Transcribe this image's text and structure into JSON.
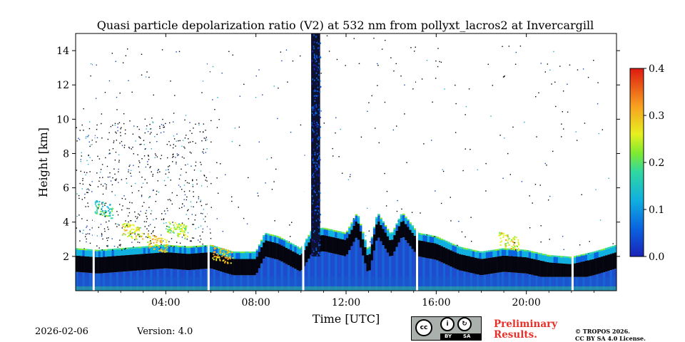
{
  "chart_data": {
    "type": "heatmap",
    "title": "Quasi particle depolarization ratio (V2) at 532 nm from pollyxt_lacros2 at Invercargill",
    "xlabel": "Time [UTC]",
    "ylabel": "Height [km]",
    "xlim_hours": [
      0,
      24
    ],
    "ylim_km": [
      0,
      15
    ],
    "x_ticks": [
      {
        "hour": 4,
        "label": "04:00"
      },
      {
        "hour": 8,
        "label": "08:00"
      },
      {
        "hour": 12,
        "label": "12:00"
      },
      {
        "hour": 16,
        "label": "16:00"
      },
      {
        "hour": 20,
        "label": "20:00"
      }
    ],
    "y_ticks": [
      {
        "km": 2,
        "label": "2"
      },
      {
        "km": 4,
        "label": "4"
      },
      {
        "km": 6,
        "label": "6"
      },
      {
        "km": 8,
        "label": "8"
      },
      {
        "km": 10,
        "label": "10"
      },
      {
        "km": 12,
        "label": "12"
      },
      {
        "km": 14,
        "label": "14"
      }
    ],
    "colorbar": {
      "range": [
        0.0,
        0.4
      ],
      "ticks": [
        {
          "value": 0.0,
          "label": "0.0"
        },
        {
          "value": 0.1,
          "label": "0.1"
        },
        {
          "value": 0.2,
          "label": "0.2"
        },
        {
          "value": 0.3,
          "label": "0.3"
        },
        {
          "value": 0.4,
          "label": "0.4"
        }
      ],
      "colors": [
        "#2030c8",
        "#0a78e0",
        "#12c0d8",
        "#40e070",
        "#e8f020",
        "#f8a020",
        "#e02010"
      ]
    },
    "cloud_top_km": [
      {
        "hour": 0.0,
        "km": 2.4
      },
      {
        "hour": 1.0,
        "km": 2.3
      },
      {
        "hour": 2.0,
        "km": 2.4
      },
      {
        "hour": 3.0,
        "km": 2.5
      },
      {
        "hour": 4.0,
        "km": 2.6
      },
      {
        "hour": 5.0,
        "km": 2.5
      },
      {
        "hour": 6.0,
        "km": 2.6
      },
      {
        "hour": 7.0,
        "km": 2.2
      },
      {
        "hour": 8.0,
        "km": 2.2
      },
      {
        "hour": 8.4,
        "km": 3.3
      },
      {
        "hour": 9.0,
        "km": 3.1
      },
      {
        "hour": 10.0,
        "km": 2.4
      },
      {
        "hour": 10.5,
        "km": 3.5
      },
      {
        "hour": 11.0,
        "km": 3.6
      },
      {
        "hour": 12.0,
        "km": 3.3
      },
      {
        "hour": 12.5,
        "km": 4.5
      },
      {
        "hour": 13.0,
        "km": 2.2
      },
      {
        "hour": 13.4,
        "km": 4.5
      },
      {
        "hour": 14.0,
        "km": 3.2
      },
      {
        "hour": 14.5,
        "km": 4.5
      },
      {
        "hour": 15.2,
        "km": 3.3
      },
      {
        "hour": 16.0,
        "km": 3.1
      },
      {
        "hour": 17.0,
        "km": 2.5
      },
      {
        "hour": 18.0,
        "km": 2.2
      },
      {
        "hour": 19.0,
        "km": 2.4
      },
      {
        "hour": 20.0,
        "km": 2.3
      },
      {
        "hour": 21.0,
        "km": 2.0
      },
      {
        "hour": 22.0,
        "km": 1.9
      },
      {
        "hour": 23.0,
        "km": 2.2
      },
      {
        "hour": 24.0,
        "km": 2.6
      }
    ],
    "plume": {
      "hour_start": 10.45,
      "hour_end": 10.85,
      "top_km": 15
    },
    "high_depol_patches": [
      {
        "hour": 1.2,
        "km": 4.8,
        "value": 0.22
      },
      {
        "hour": 2.5,
        "km": 3.5,
        "value": 0.33
      },
      {
        "hour": 3.6,
        "km": 2.8,
        "value": 0.36
      },
      {
        "hour": 4.5,
        "km": 3.6,
        "value": 0.3
      },
      {
        "hour": 6.5,
        "km": 2.1,
        "value": 0.38
      },
      {
        "hour": 19.2,
        "km": 2.9,
        "value": 0.32
      }
    ],
    "data_gaps_hours": [
      0.8,
      5.9,
      10.1,
      15.15,
      22.05
    ]
  },
  "footer": {
    "date": "2026-02-06",
    "version": "Version: 4.0",
    "preliminary": [
      "Preliminary",
      "Results."
    ],
    "copyright": [
      "© TROPOS 2026.",
      "CC BY SA 4.0 License."
    ],
    "license_badge": {
      "cc": "cc",
      "by": "BY",
      "sa": "SA"
    }
  }
}
